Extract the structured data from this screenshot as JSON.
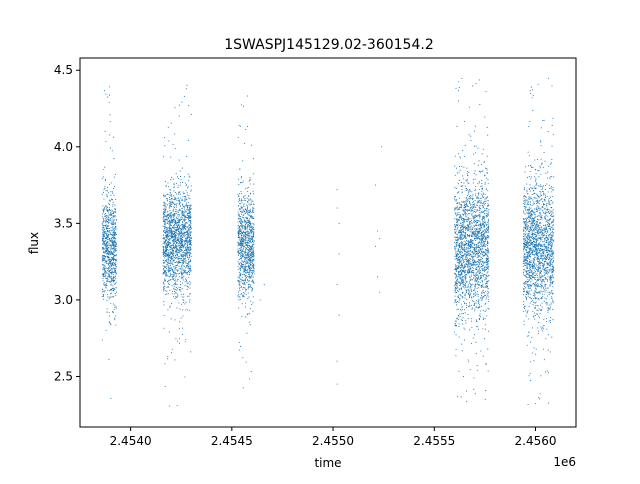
{
  "chart_data": {
    "type": "scatter",
    "title": "1SWASPJ145129.02-360154.2",
    "xlabel": "time",
    "ylabel": "flux",
    "x_offset_label": "1e6",
    "xlim": [
      2.45375,
      2.4562
    ],
    "ylim": [
      2.17,
      4.58
    ],
    "x_ticks": [
      2.454,
      2.4545,
      2.455,
      2.4555,
      2.456
    ],
    "x_tick_labels": [
      "2.4540",
      "2.4545",
      "2.4550",
      "2.4555",
      "2.4560"
    ],
    "y_ticks": [
      2.5,
      3.0,
      3.5,
      4.0,
      4.5
    ],
    "y_tick_labels": [
      "2.5",
      "3.0",
      "3.5",
      "4.0",
      "4.5"
    ],
    "grid": false,
    "marker_color": "#1f77b4",
    "clusters": [
      {
        "x_start": 2.45386,
        "x_end": 2.45393,
        "y_center": 3.33,
        "y_spread": 0.17,
        "y_min": 2.35,
        "y_max": 4.4
      },
      {
        "x_start": 2.45416,
        "x_end": 2.4543,
        "y_center": 3.38,
        "y_spread": 0.17,
        "y_min": 2.3,
        "y_max": 4.45
      },
      {
        "x_start": 2.45453,
        "x_end": 2.45461,
        "y_center": 3.36,
        "y_spread": 0.17,
        "y_min": 2.3,
        "y_max": 4.35
      },
      {
        "x_start": 2.4556,
        "x_end": 2.45577,
        "y_center": 3.34,
        "y_spread": 0.22,
        "y_min": 2.3,
        "y_max": 4.45
      },
      {
        "x_start": 2.45594,
        "x_end": 2.45609,
        "y_center": 3.34,
        "y_spread": 0.22,
        "y_min": 2.3,
        "y_max": 4.45
      }
    ],
    "sparse_points": [
      {
        "x": 2.45502,
        "y": 3.72
      },
      {
        "x": 2.45502,
        "y": 3.6
      },
      {
        "x": 2.45503,
        "y": 3.3
      },
      {
        "x": 2.45502,
        "y": 3.1
      },
      {
        "x": 2.45503,
        "y": 2.9
      },
      {
        "x": 2.45502,
        "y": 2.6
      },
      {
        "x": 2.45503,
        "y": 3.5
      },
      {
        "x": 2.45521,
        "y": 3.75
      },
      {
        "x": 2.45522,
        "y": 3.45
      },
      {
        "x": 2.45521,
        "y": 3.35
      },
      {
        "x": 2.45522,
        "y": 3.15
      },
      {
        "x": 2.45523,
        "y": 3.05
      },
      {
        "x": 2.45524,
        "y": 4.0
      },
      {
        "x": 2.45523,
        "y": 3.4
      },
      {
        "x": 2.45464,
        "y": 3.0
      },
      {
        "x": 2.45466,
        "y": 3.1
      },
      {
        "x": 2.45502,
        "y": 2.45
      }
    ]
  }
}
